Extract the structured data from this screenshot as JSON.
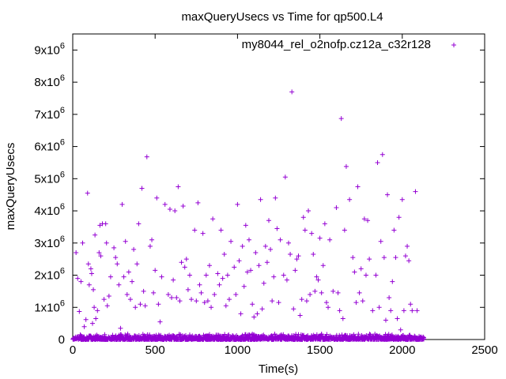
{
  "chart_data": {
    "type": "scatter",
    "title": "maxQueryUsecs vs Time for qp500.L4",
    "xlabel": "Time(s)",
    "ylabel": "maxQueryUsecs",
    "xlim": [
      0,
      2500
    ],
    "ylim": [
      0,
      9500000
    ],
    "x_ticks": [
      0,
      500,
      1000,
      1500,
      2000,
      2500
    ],
    "x_tick_labels": [
      "0",
      "500",
      "1000",
      "1500",
      "2000",
      "2500"
    ],
    "y_ticks": [
      0,
      1000000,
      2000000,
      3000000,
      4000000,
      5000000,
      6000000,
      7000000,
      8000000,
      9000000
    ],
    "y_tick_labels": [
      {
        "base": "0",
        "exp": ""
      },
      {
        "base": "1x10",
        "exp": "6"
      },
      {
        "base": "2x10",
        "exp": "6"
      },
      {
        "base": "3x10",
        "exp": "6"
      },
      {
        "base": "4x10",
        "exp": "6"
      },
      {
        "base": "5x10",
        "exp": "6"
      },
      {
        "base": "6x10",
        "exp": "6"
      },
      {
        "base": "7x10",
        "exp": "6"
      },
      {
        "base": "8x10",
        "exp": "6"
      },
      {
        "base": "9x10",
        "exp": "6"
      }
    ],
    "grid": false,
    "legend_position": "top-right",
    "series": [
      {
        "name": "my8044_rel_o2nofp.cz12a_c32r128",
        "color": "#9400d3",
        "marker": "plus",
        "points": [
          [
            20,
            2700000
          ],
          [
            30,
            1900000
          ],
          [
            40,
            870000
          ],
          [
            50,
            1800000
          ],
          [
            60,
            3000000
          ],
          [
            70,
            400000
          ],
          [
            80,
            620000
          ],
          [
            90,
            4550000
          ],
          [
            95,
            2350000
          ],
          [
            100,
            1700000
          ],
          [
            110,
            2200000
          ],
          [
            115,
            2050000
          ],
          [
            120,
            500000
          ],
          [
            125,
            1550000
          ],
          [
            130,
            1000000
          ],
          [
            135,
            3250000
          ],
          [
            140,
            650000
          ],
          [
            150,
            900000
          ],
          [
            160,
            2700000
          ],
          [
            165,
            3550000
          ],
          [
            170,
            2600000
          ],
          [
            180,
            3600000
          ],
          [
            190,
            1250000
          ],
          [
            200,
            3600000
          ],
          [
            205,
            3000000
          ],
          [
            210,
            1050000
          ],
          [
            220,
            1350000
          ],
          [
            230,
            1950000
          ],
          [
            250,
            2850000
          ],
          [
            260,
            2550000
          ],
          [
            270,
            2350000
          ],
          [
            280,
            1700000
          ],
          [
            290,
            350000
          ],
          [
            300,
            4200000
          ],
          [
            310,
            1950000
          ],
          [
            320,
            3050000
          ],
          [
            330,
            1400000
          ],
          [
            340,
            2100000
          ],
          [
            350,
            1250000
          ],
          [
            360,
            1800000
          ],
          [
            370,
            2800000
          ],
          [
            380,
            1000000
          ],
          [
            390,
            2350000
          ],
          [
            400,
            3600000
          ],
          [
            410,
            1100000
          ],
          [
            420,
            4700000
          ],
          [
            430,
            1500000
          ],
          [
            440,
            1050000
          ],
          [
            450,
            5680000
          ],
          [
            470,
            2900000
          ],
          [
            480,
            3100000
          ],
          [
            490,
            1450000
          ],
          [
            500,
            2150000
          ],
          [
            510,
            4400000
          ],
          [
            520,
            1100000
          ],
          [
            530,
            550000
          ],
          [
            540,
            1950000
          ],
          [
            560,
            4200000
          ],
          [
            580,
            1400000
          ],
          [
            590,
            4050000
          ],
          [
            600,
            1300000
          ],
          [
            610,
            1850000
          ],
          [
            620,
            4000000
          ],
          [
            630,
            1300000
          ],
          [
            640,
            4750000
          ],
          [
            650,
            1200000
          ],
          [
            660,
            2400000
          ],
          [
            670,
            4150000
          ],
          [
            680,
            2250000
          ],
          [
            690,
            2500000
          ],
          [
            700,
            1550000
          ],
          [
            710,
            2000000
          ],
          [
            720,
            1250000
          ],
          [
            740,
            3400000
          ],
          [
            750,
            1200000
          ],
          [
            760,
            4250000
          ],
          [
            770,
            1700000
          ],
          [
            780,
            1450000
          ],
          [
            790,
            3300000
          ],
          [
            800,
            1150000
          ],
          [
            810,
            2000000
          ],
          [
            820,
            1200000
          ],
          [
            830,
            2300000
          ],
          [
            840,
            1000000
          ],
          [
            850,
            3750000
          ],
          [
            860,
            1400000
          ],
          [
            880,
            2050000
          ],
          [
            890,
            1700000
          ],
          [
            900,
            3400000
          ],
          [
            910,
            1900000
          ],
          [
            920,
            2650000
          ],
          [
            930,
            1050000
          ],
          [
            940,
            2000000
          ],
          [
            950,
            1250000
          ],
          [
            960,
            3050000
          ],
          [
            980,
            2250000
          ],
          [
            990,
            1400000
          ],
          [
            1000,
            4200000
          ],
          [
            1010,
            2450000
          ],
          [
            1020,
            800000
          ],
          [
            1030,
            2900000
          ],
          [
            1040,
            1650000
          ],
          [
            1050,
            3550000
          ],
          [
            1060,
            2100000
          ],
          [
            1070,
            3100000
          ],
          [
            1080,
            2150000
          ],
          [
            1090,
            1100000
          ],
          [
            1100,
            700000
          ],
          [
            1110,
            2700000
          ],
          [
            1120,
            800000
          ],
          [
            1130,
            2300000
          ],
          [
            1140,
            4350000
          ],
          [
            1150,
            950000
          ],
          [
            1160,
            1750000
          ],
          [
            1170,
            2900000
          ],
          [
            1180,
            2400000
          ],
          [
            1190,
            3700000
          ],
          [
            1200,
            2800000
          ],
          [
            1210,
            1200000
          ],
          [
            1220,
            1950000
          ],
          [
            1230,
            4400000
          ],
          [
            1240,
            3450000
          ],
          [
            1250,
            1150000
          ],
          [
            1260,
            3100000
          ],
          [
            1280,
            2000000
          ],
          [
            1290,
            5050000
          ],
          [
            1300,
            1850000
          ],
          [
            1310,
            3000000
          ],
          [
            1320,
            2650000
          ],
          [
            1330,
            7700000
          ],
          [
            1340,
            950000
          ],
          [
            1350,
            2150000
          ],
          [
            1360,
            2500000
          ],
          [
            1370,
            2600000
          ],
          [
            1380,
            750000
          ],
          [
            1390,
            1250000
          ],
          [
            1400,
            3800000
          ],
          [
            1410,
            3400000
          ],
          [
            1420,
            1200000
          ],
          [
            1430,
            4000000
          ],
          [
            1440,
            1400000
          ],
          [
            1450,
            3300000
          ],
          [
            1460,
            2650000
          ],
          [
            1470,
            1500000
          ],
          [
            1480,
            1950000
          ],
          [
            1490,
            1850000
          ],
          [
            1500,
            3150000
          ],
          [
            1510,
            1450000
          ],
          [
            1520,
            2300000
          ],
          [
            1530,
            3600000
          ],
          [
            1540,
            1150000
          ],
          [
            1550,
            1000000
          ],
          [
            1560,
            3100000
          ],
          [
            1580,
            1500000
          ],
          [
            1600,
            4100000
          ],
          [
            1610,
            1450000
          ],
          [
            1620,
            900000
          ],
          [
            1630,
            6870000
          ],
          [
            1640,
            650000
          ],
          [
            1650,
            3400000
          ],
          [
            1660,
            5380000
          ],
          [
            1680,
            4350000
          ],
          [
            1700,
            2550000
          ],
          [
            1710,
            2100000
          ],
          [
            1720,
            1150000
          ],
          [
            1730,
            4750000
          ],
          [
            1740,
            1450000
          ],
          [
            1750,
            2200000
          ],
          [
            1760,
            1200000
          ],
          [
            1770,
            3750000
          ],
          [
            1780,
            2000000
          ],
          [
            1790,
            3700000
          ],
          [
            1800,
            2500000
          ],
          [
            1820,
            900000
          ],
          [
            1840,
            2000000
          ],
          [
            1850,
            5500000
          ],
          [
            1860,
            1000000
          ],
          [
            1870,
            3050000
          ],
          [
            1880,
            5750000
          ],
          [
            1890,
            2550000
          ],
          [
            1900,
            600000
          ],
          [
            1910,
            4500000
          ],
          [
            1920,
            1300000
          ],
          [
            1930,
            900000
          ],
          [
            1940,
            1800000
          ],
          [
            1950,
            3400000
          ],
          [
            1960,
            2550000
          ],
          [
            1970,
            650000
          ],
          [
            1980,
            3800000
          ],
          [
            1990,
            300000
          ],
          [
            2000,
            4350000
          ],
          [
            2010,
            900000
          ],
          [
            2020,
            2600000
          ],
          [
            2030,
            2900000
          ],
          [
            2040,
            2450000
          ],
          [
            2050,
            1100000
          ],
          [
            2060,
            900000
          ],
          [
            2080,
            4600000
          ],
          [
            2090,
            900000
          ]
        ]
      }
    ]
  }
}
